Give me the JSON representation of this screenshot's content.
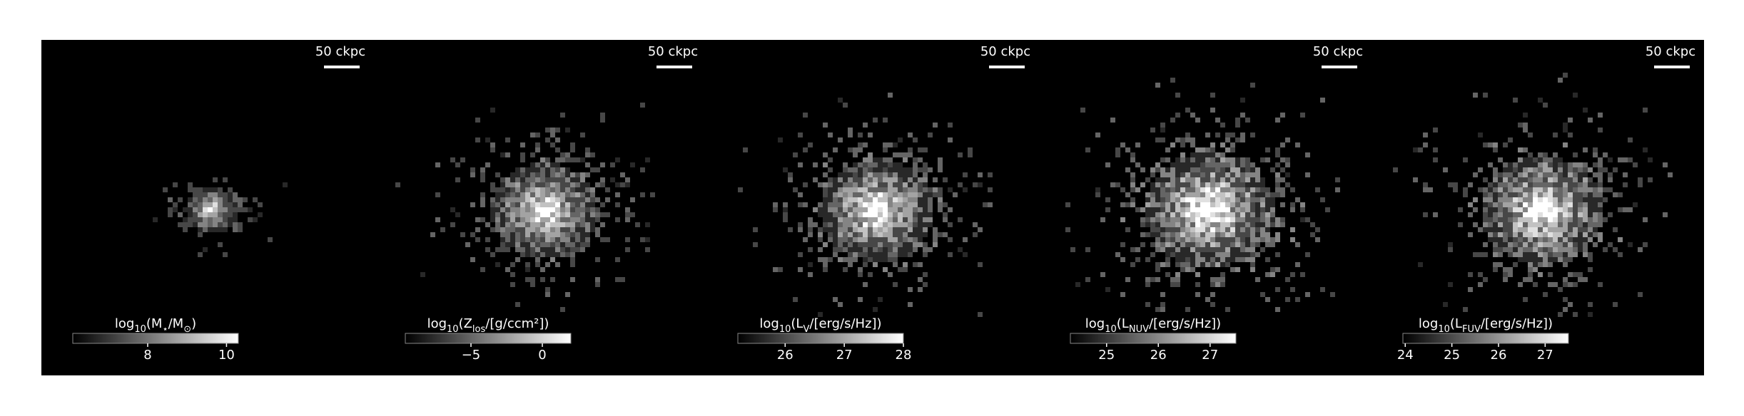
{
  "chart_data": [
    {
      "type": "image",
      "scalebar": "50 ckpc",
      "label": [
        "log",
        "10",
        "(M",
        "⋆",
        "/M",
        "⊙",
        ")"
      ],
      "clim": [
        6.1,
        10.3
      ],
      "ticks": [
        8,
        10
      ]
    },
    {
      "type": "image",
      "scalebar": "50 ckpc",
      "label": [
        "log",
        "10",
        "(Z",
        "los",
        "/[g/ccm²])"
      ],
      "clim": [
        -9.6,
        2.0
      ],
      "ticks": [
        {
          "value": -5,
          "label": "−5"
        },
        0
      ]
    },
    {
      "type": "image",
      "scalebar": "50 ckpc",
      "label": [
        "log",
        "10",
        "(L",
        "V",
        "/[erg/s/Hz])"
      ],
      "clim": [
        25.2,
        28.0
      ],
      "ticks": [
        26,
        27,
        28
      ]
    },
    {
      "type": "image",
      "scalebar": "50 ckpc",
      "label": [
        "log",
        "10",
        "(L",
        "NUV",
        "/[erg/s/Hz])"
      ],
      "clim": [
        24.3,
        27.5
      ],
      "ticks": [
        25,
        26,
        27
      ]
    },
    {
      "type": "image",
      "scalebar": "50 ckpc",
      "label": [
        "log",
        "10",
        "(L",
        "FUV",
        "/[erg/s/Hz])"
      ],
      "clim": [
        23.95,
        27.5
      ],
      "ticks": [
        24,
        25,
        26,
        27
      ]
    }
  ]
}
